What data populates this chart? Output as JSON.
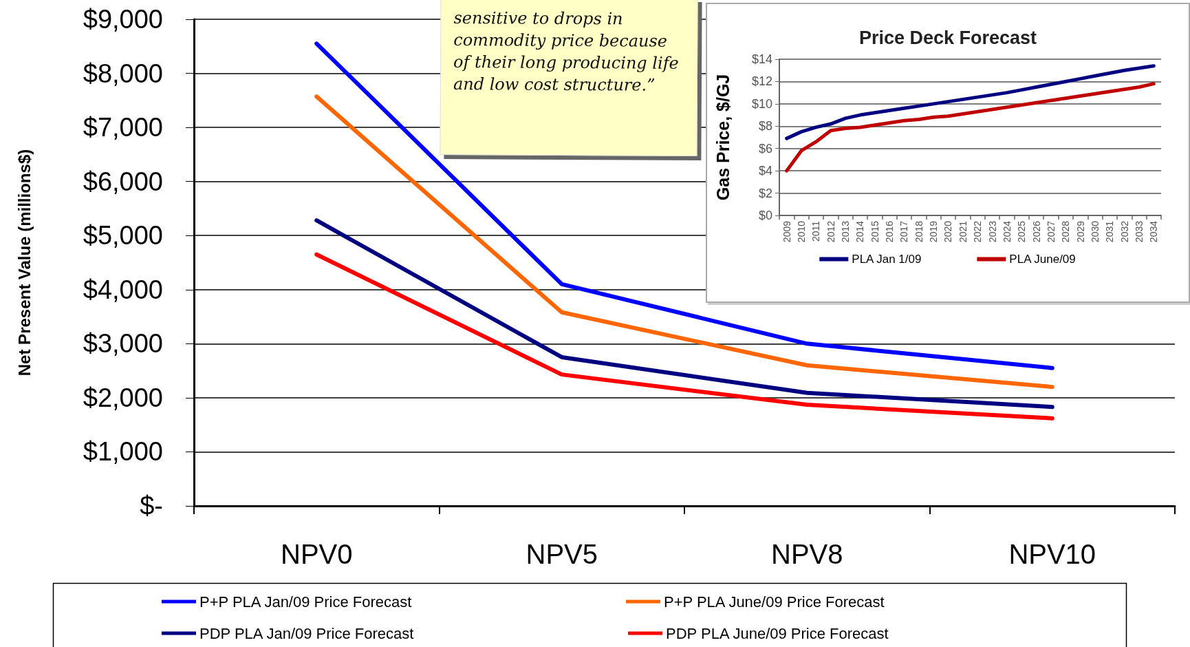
{
  "chart_data": [
    {
      "type": "line",
      "ylabel": "Net Present Value (millions$)",
      "categories": [
        "NPV0",
        "NPV5",
        "NPV8",
        "NPV10"
      ],
      "series": [
        {
          "name": "P+P PLA Jan/09 Price Forecast",
          "color": "#0000ff",
          "values": [
            8550,
            4100,
            3000,
            2550
          ]
        },
        {
          "name": "P+P PLA June/09 Price Forecast",
          "color": "#ff6600",
          "values": [
            7570,
            3580,
            2600,
            2200
          ]
        },
        {
          "name": "PDP PLA Jan/09 Price Forecast",
          "color": "#000080",
          "values": [
            5280,
            2750,
            2090,
            1830
          ]
        },
        {
          "name": "PDP PLA June/09 Price Forecast",
          "color": "#ff0000",
          "values": [
            4650,
            2430,
            1870,
            1620
          ]
        }
      ],
      "ylim": [
        0,
        9000
      ],
      "yticks": [
        {
          "value": 0,
          "label": "$-"
        },
        {
          "value": 1000,
          "label": "$1,000"
        },
        {
          "value": 2000,
          "label": "$2,000"
        },
        {
          "value": 3000,
          "label": "$3,000"
        },
        {
          "value": 4000,
          "label": "$4,000"
        },
        {
          "value": 5000,
          "label": "$5,000"
        },
        {
          "value": 6000,
          "label": "$6,000"
        },
        {
          "value": 7000,
          "label": "$7,000"
        },
        {
          "value": 8000,
          "label": "$8,000"
        },
        {
          "value": 9000,
          "label": "$9,000"
        }
      ],
      "grid": "y",
      "legend": "bottom",
      "marker": "none",
      "line_style": "solid",
      "annotations": [
        "sensitive to drops in commodity price because of their long producing life and low cost structure.”"
      ]
    },
    {
      "type": "line",
      "title": "Price Deck Forecast",
      "ylabel": "Gas Price, $/GJ",
      "categories": [
        "2009",
        "2010",
        "2011",
        "2012",
        "2013",
        "2014",
        "2015",
        "2016",
        "2017",
        "2018",
        "2019",
        "2020",
        "2021",
        "2022",
        "2023",
        "2024",
        "2025",
        "2026",
        "2027",
        "2028",
        "2029",
        "2030",
        "2031",
        "2032",
        "2033",
        "2034"
      ],
      "series": [
        {
          "name": "PLA Jan 1/09",
          "color": "#000080",
          "values": [
            6.9,
            7.5,
            7.9,
            8.2,
            8.7,
            9.0,
            9.2,
            9.4,
            9.6,
            9.8,
            10.0,
            10.2,
            10.4,
            10.6,
            10.8,
            11.0,
            11.25,
            11.5,
            11.75,
            12.0,
            12.25,
            12.5,
            12.75,
            13.0,
            13.2,
            13.4
          ]
        },
        {
          "name": "PLA June/09",
          "color": "#c00000",
          "values": [
            4.0,
            5.8,
            6.6,
            7.6,
            7.8,
            7.9,
            8.1,
            8.3,
            8.5,
            8.6,
            8.8,
            8.9,
            9.1,
            9.3,
            9.5,
            9.7,
            9.9,
            10.1,
            10.3,
            10.5,
            10.7,
            10.9,
            11.1,
            11.3,
            11.5,
            11.8
          ]
        }
      ],
      "ylim": [
        0,
        14
      ],
      "yticks": [
        {
          "value": 0,
          "label": "$0"
        },
        {
          "value": 2,
          "label": "$2"
        },
        {
          "value": 4,
          "label": "$4"
        },
        {
          "value": 6,
          "label": "$6"
        },
        {
          "value": 8,
          "label": "$8"
        },
        {
          "value": 10,
          "label": "$10"
        },
        {
          "value": 12,
          "label": "$12"
        },
        {
          "value": 14,
          "label": "$14"
        }
      ],
      "grid": "y",
      "legend": "bottom",
      "marker": "none",
      "line_style": "solid"
    }
  ]
}
